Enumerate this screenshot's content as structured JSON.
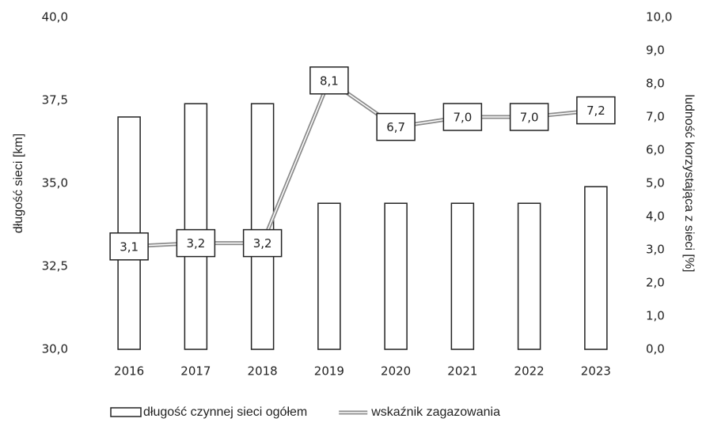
{
  "chart_data": {
    "type": "bar",
    "categories": [
      "2016",
      "2017",
      "2018",
      "2019",
      "2020",
      "2021",
      "2022",
      "2023"
    ],
    "series": [
      {
        "name": "długość czynnej sieci ogółem",
        "type": "bar",
        "color": "#ffffff",
        "values": [
          37.0,
          37.4,
          37.4,
          34.4,
          34.4,
          34.4,
          34.4,
          34.9
        ]
      },
      {
        "name": "wskaźnik zagazowania",
        "type": "line",
        "axis": "y2",
        "color": "#8c8c8c",
        "values": [
          3.1,
          3.2,
          3.2,
          8.1,
          6.7,
          7.0,
          7.0,
          7.2
        ],
        "value_labels": [
          "3,1",
          "3,2",
          "3,2",
          "8,1",
          "6,7",
          "7,0",
          "7,0",
          "7,2"
        ]
      }
    ],
    "ylabel": "długość sieci [km]",
    "y2label": "ludność korzystająca z sieci [%]",
    "ylim": [
      30,
      40
    ],
    "yticks": [
      {
        "value": 30,
        "label": "30,0"
      },
      {
        "value": 32.5,
        "label": "32,5"
      },
      {
        "value": 35,
        "label": "35,0"
      },
      {
        "value": 37.5,
        "label": "37,5"
      },
      {
        "value": 40,
        "label": "40,0"
      }
    ],
    "y2lim": [
      0,
      10
    ],
    "y2ticks": [
      {
        "value": 0,
        "label": "0,0"
      },
      {
        "value": 1,
        "label": "1,0"
      },
      {
        "value": 2,
        "label": "2,0"
      },
      {
        "value": 3,
        "label": "3,0"
      },
      {
        "value": 4,
        "label": "4,0"
      },
      {
        "value": 5,
        "label": "5,0"
      },
      {
        "value": 6,
        "label": "6,0"
      },
      {
        "value": 7,
        "label": "7,0"
      },
      {
        "value": 8,
        "label": "8,0"
      },
      {
        "value": 9,
        "label": "9,0"
      },
      {
        "value": 10,
        "label": "10,0"
      }
    ],
    "grid": false,
    "legend": "bottom"
  }
}
